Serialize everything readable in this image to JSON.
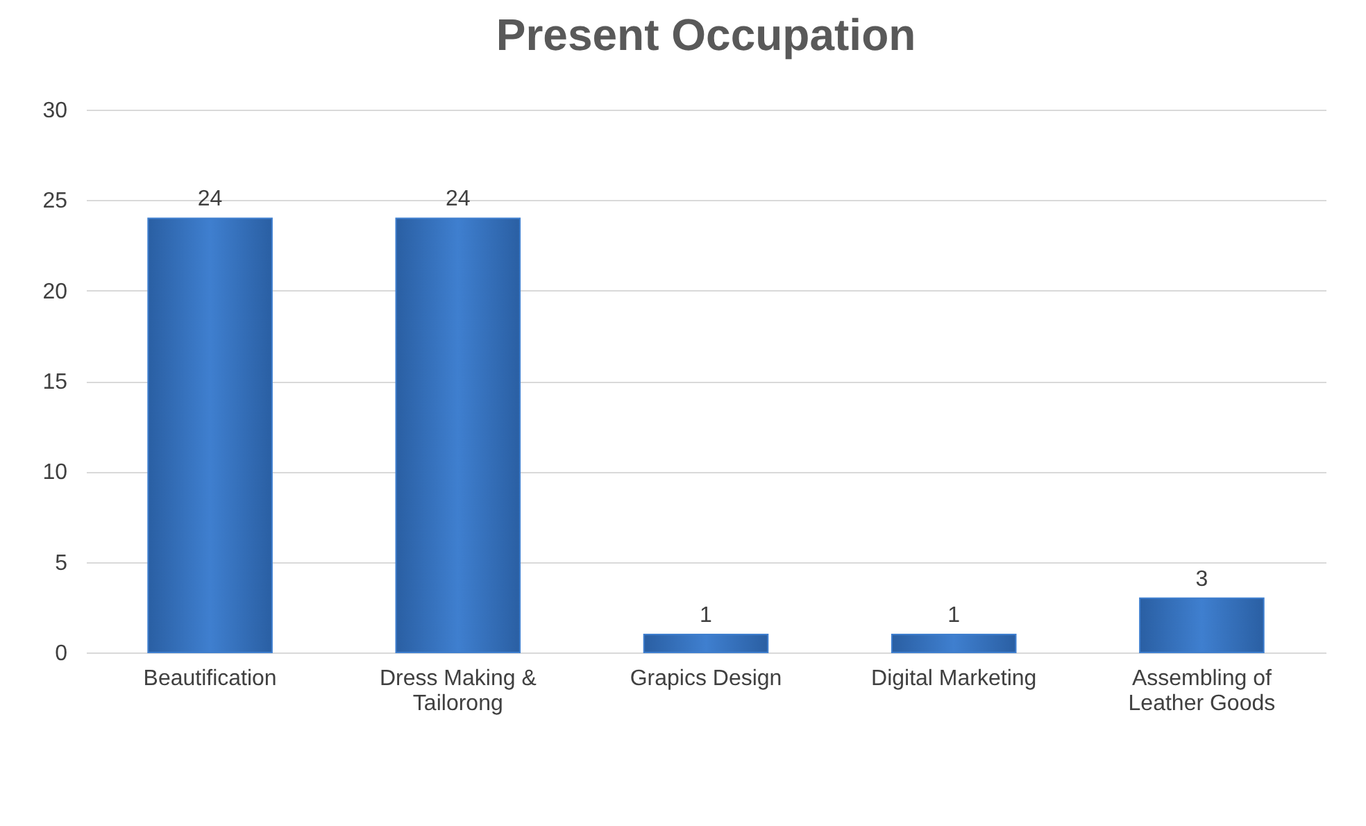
{
  "chart_data": {
    "type": "bar",
    "title": "Present Occupation",
    "categories": [
      "Beautification",
      "Dress Making & Tailorong",
      "Grapics Design",
      "Digital Marketing",
      "Assembling of Leather Goods"
    ],
    "values": [
      24,
      24,
      1,
      1,
      3
    ],
    "color": "#3f7fcf",
    "ylim": [
      0,
      30
    ],
    "yticks": [
      0,
      5,
      10,
      15,
      20,
      25,
      30
    ],
    "grid": "y",
    "data_labels": true
  }
}
